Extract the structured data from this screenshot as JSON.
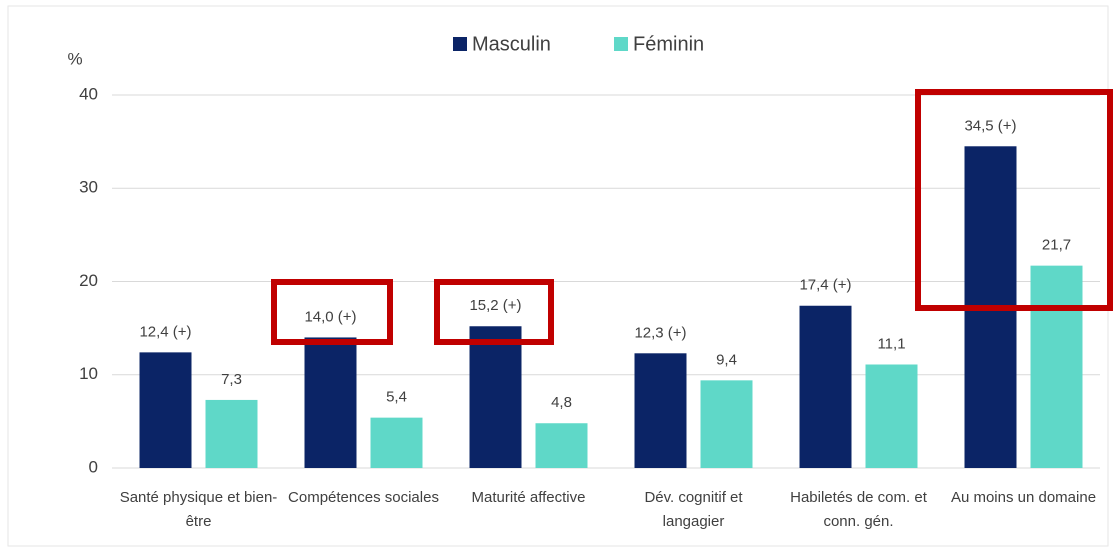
{
  "chart_data": {
    "type": "bar",
    "y_label": "%",
    "categories": [
      "Santé physique et bien-être",
      "Compétences sociales",
      "Maturité affective",
      "Dév. cognitif et langagier",
      "Habiletés de com. et conn. gén.",
      "Au moins un domaine"
    ],
    "series": [
      {
        "name": "Masculin",
        "color": "#0b2466",
        "values": [
          12.4,
          14.0,
          15.2,
          12.3,
          17.4,
          34.5
        ],
        "value_labels": [
          "12,4 (+)",
          "14,0 (+)",
          "15,2 (+)",
          "12,3 (+)",
          "17,4 (+)",
          "34,5 (+)"
        ]
      },
      {
        "name": "Féminin",
        "color": "#5fd8c8",
        "values": [
          7.3,
          5.4,
          4.8,
          9.4,
          11.1,
          21.7
        ],
        "value_labels": [
          "7,3",
          "5,4",
          "4,8",
          "9,4",
          "11,1",
          "21,7"
        ]
      }
    ],
    "ylim": [
      0,
      40
    ],
    "yticks": [
      0,
      10,
      20,
      30,
      40
    ],
    "grid": true,
    "legend": "top"
  }
}
